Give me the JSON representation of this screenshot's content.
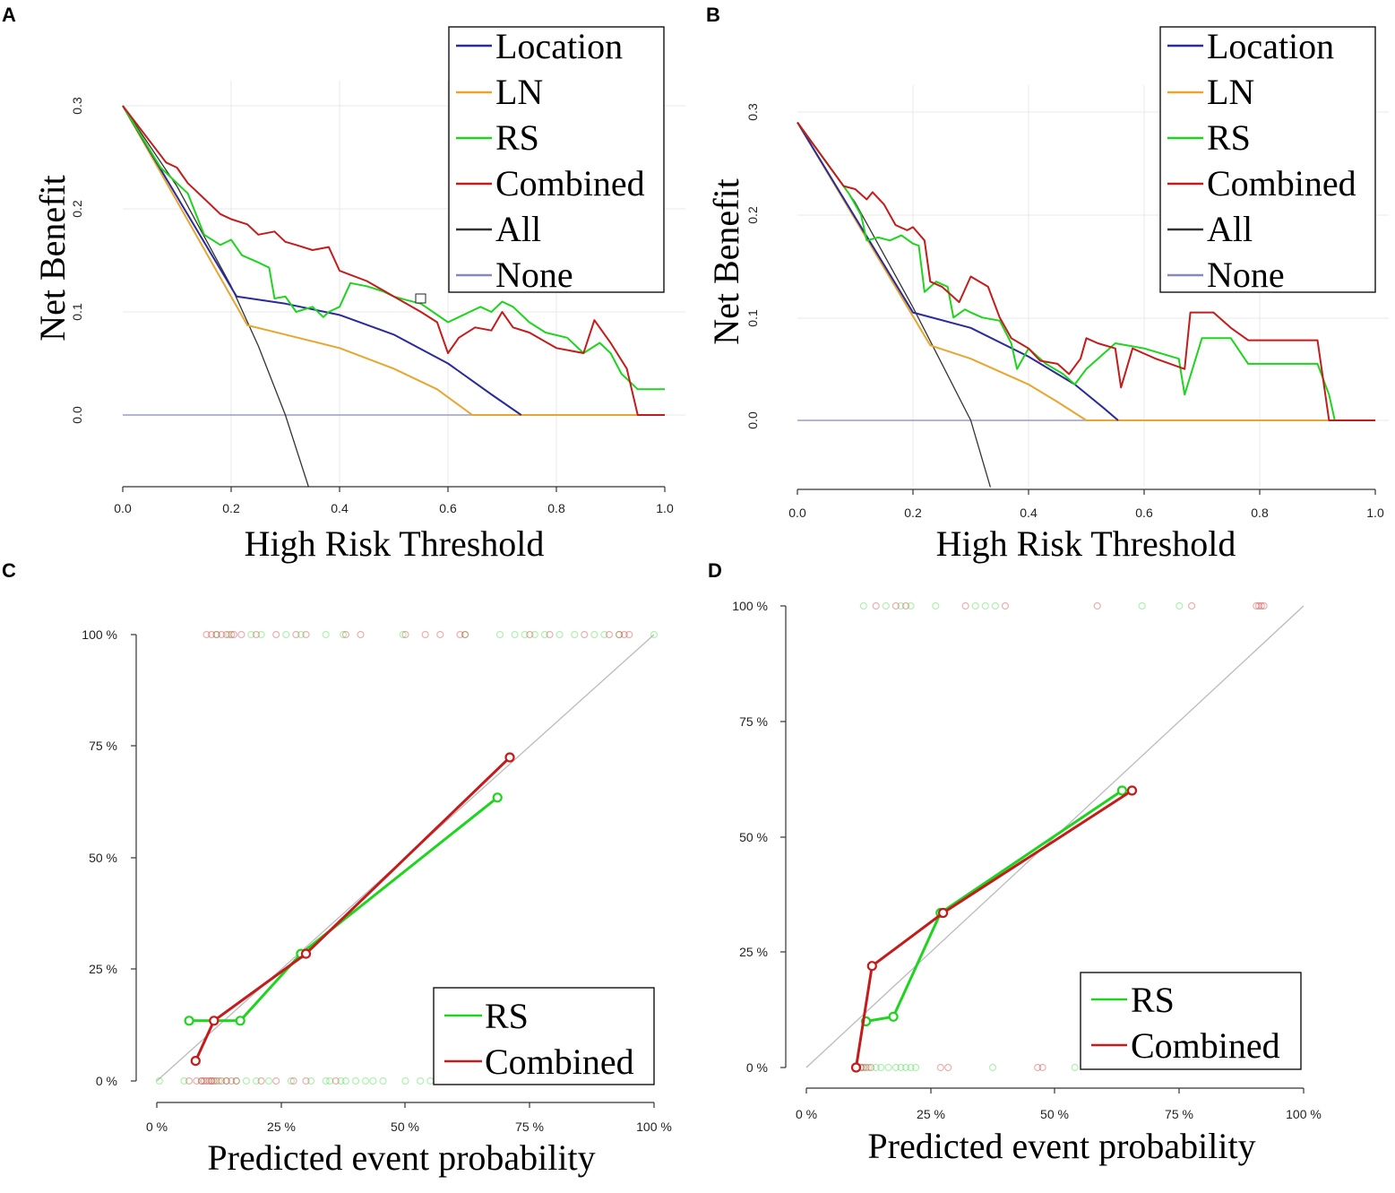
{
  "colors": {
    "Location": "#2a2a9c",
    "LN": "#e8a630",
    "RS": "#1fd41f",
    "Combined": "#c41c1c",
    "All": "#333333",
    "None": "#8888bb",
    "diagonal": "#bbbbbb"
  },
  "chart_data": [
    {
      "panel": "A",
      "type": "line",
      "title": "",
      "xlabel": "High Risk Threshold",
      "ylabel": "Net Benefit",
      "xlim": [
        0.0,
        1.0
      ],
      "ylim": [
        -0.07,
        0.3
      ],
      "x_ticks": [
        "0.0",
        "0.2",
        "0.4",
        "0.6",
        "0.8",
        "1.0"
      ],
      "y_ticks": [
        "0.0",
        "0.1",
        "0.2",
        "0.3"
      ],
      "legend": [
        "Location",
        "LN",
        "RS",
        "Combined",
        "All",
        "None"
      ],
      "series": [
        {
          "name": "Location",
          "x": [
            0,
            0.21,
            0.3,
            0.4,
            0.5,
            0.6,
            0.68,
            0.735
          ],
          "y": [
            0.3,
            0.115,
            0.108,
            0.097,
            0.078,
            0.05,
            0.02,
            0.0
          ]
        },
        {
          "name": "LN",
          "x": [
            0,
            0.23,
            0.3,
            0.4,
            0.5,
            0.58,
            0.645,
            0.75,
            1.0
          ],
          "y": [
            0.3,
            0.087,
            0.078,
            0.065,
            0.045,
            0.025,
            0.0,
            0.0,
            0.0
          ]
        },
        {
          "name": "RS",
          "x": [
            0,
            0.07,
            0.12,
            0.15,
            0.18,
            0.2,
            0.22,
            0.25,
            0.27,
            0.28,
            0.3,
            0.32,
            0.35,
            0.37,
            0.38,
            0.4,
            0.42,
            0.45,
            0.48,
            0.5,
            0.52,
            0.55,
            0.6,
            0.62,
            0.64,
            0.66,
            0.68,
            0.7,
            0.72,
            0.75,
            0.78,
            0.82,
            0.85,
            0.88,
            0.9,
            0.92,
            0.95,
            1.0
          ],
          "y": [
            0.3,
            0.24,
            0.215,
            0.175,
            0.165,
            0.17,
            0.155,
            0.148,
            0.143,
            0.113,
            0.115,
            0.1,
            0.105,
            0.095,
            0.1,
            0.105,
            0.128,
            0.125,
            0.12,
            0.115,
            0.112,
            0.108,
            0.09,
            0.095,
            0.1,
            0.105,
            0.1,
            0.11,
            0.105,
            0.09,
            0.08,
            0.075,
            0.06,
            0.07,
            0.06,
            0.04,
            0.025,
            0.025
          ]
        },
        {
          "name": "Combined",
          "x": [
            0,
            0.08,
            0.1,
            0.12,
            0.15,
            0.18,
            0.2,
            0.23,
            0.25,
            0.28,
            0.3,
            0.32,
            0.35,
            0.38,
            0.4,
            0.45,
            0.5,
            0.55,
            0.58,
            0.6,
            0.62,
            0.65,
            0.68,
            0.7,
            0.72,
            0.75,
            0.8,
            0.85,
            0.87,
            0.9,
            0.93,
            0.95,
            1.0
          ],
          "y": [
            0.3,
            0.245,
            0.24,
            0.225,
            0.21,
            0.195,
            0.19,
            0.185,
            0.175,
            0.178,
            0.168,
            0.165,
            0.16,
            0.163,
            0.14,
            0.13,
            0.115,
            0.1,
            0.09,
            0.06,
            0.075,
            0.085,
            0.082,
            0.1,
            0.085,
            0.08,
            0.065,
            0.06,
            0.092,
            0.07,
            0.045,
            0.0,
            0.0
          ]
        },
        {
          "name": "All",
          "x": [
            0,
            0.1,
            0.2,
            0.25,
            0.3,
            0.343
          ],
          "y": [
            0.3,
            0.222,
            0.125,
            0.067,
            0.0,
            -0.07
          ]
        },
        {
          "name": "None",
          "x": [
            0,
            1
          ],
          "y": [
            0,
            0
          ]
        }
      ]
    },
    {
      "panel": "B",
      "type": "line",
      "title": "",
      "xlabel": "High Risk Threshold",
      "ylabel": "Net Benefit",
      "xlim": [
        0.0,
        1.0
      ],
      "ylim": [
        -0.065,
        0.3
      ],
      "x_ticks": [
        "0.0",
        "0.2",
        "0.4",
        "0.6",
        "0.8",
        "1.0"
      ],
      "y_ticks": [
        "0.0",
        "0.1",
        "0.2",
        "0.3"
      ],
      "legend": [
        "Location",
        "LN",
        "RS",
        "Combined",
        "All",
        "None"
      ],
      "series": [
        {
          "name": "Location",
          "x": [
            0,
            0.2,
            0.3,
            0.4,
            0.48,
            0.53,
            0.555
          ],
          "y": [
            0.29,
            0.105,
            0.09,
            0.062,
            0.035,
            0.012,
            0.0
          ]
        },
        {
          "name": "LN",
          "x": [
            0,
            0.23,
            0.3,
            0.4,
            0.45,
            0.5,
            1.0
          ],
          "y": [
            0.29,
            0.073,
            0.06,
            0.035,
            0.018,
            0.0,
            0.0
          ]
        },
        {
          "name": "RS",
          "x": [
            0,
            0.09,
            0.11,
            0.12,
            0.14,
            0.16,
            0.18,
            0.2,
            0.21,
            0.22,
            0.24,
            0.26,
            0.27,
            0.29,
            0.3,
            0.32,
            0.35,
            0.37,
            0.38,
            0.4,
            0.43,
            0.46,
            0.48,
            0.5,
            0.55,
            0.6,
            0.66,
            0.67,
            0.7,
            0.75,
            0.78,
            0.9,
            0.92,
            0.93
          ],
          "y": [
            0.29,
            0.22,
            0.2,
            0.175,
            0.178,
            0.175,
            0.18,
            0.172,
            0.17,
            0.125,
            0.135,
            0.13,
            0.1,
            0.108,
            0.105,
            0.1,
            0.097,
            0.075,
            0.05,
            0.07,
            0.055,
            0.045,
            0.035,
            0.05,
            0.075,
            0.07,
            0.06,
            0.025,
            0.08,
            0.08,
            0.055,
            0.055,
            0.025,
            0.0
          ]
        },
        {
          "name": "Combined",
          "x": [
            0,
            0.08,
            0.1,
            0.12,
            0.13,
            0.15,
            0.17,
            0.19,
            0.2,
            0.22,
            0.23,
            0.25,
            0.28,
            0.3,
            0.33,
            0.35,
            0.37,
            0.4,
            0.42,
            0.45,
            0.47,
            0.49,
            0.5,
            0.52,
            0.55,
            0.56,
            0.58,
            0.6,
            0.62,
            0.67,
            0.68,
            0.72,
            0.75,
            0.78,
            0.85,
            0.9,
            0.92,
            1.0
          ],
          "y": [
            0.29,
            0.228,
            0.225,
            0.215,
            0.222,
            0.21,
            0.19,
            0.185,
            0.188,
            0.175,
            0.135,
            0.13,
            0.115,
            0.14,
            0.13,
            0.1,
            0.08,
            0.07,
            0.058,
            0.055,
            0.045,
            0.06,
            0.08,
            0.075,
            0.07,
            0.032,
            0.07,
            0.065,
            0.06,
            0.05,
            0.105,
            0.105,
            0.09,
            0.078,
            0.078,
            0.078,
            0.0,
            0.0
          ]
        },
        {
          "name": "All",
          "x": [
            0,
            0.1,
            0.2,
            0.25,
            0.3,
            0.334
          ],
          "y": [
            0.29,
            0.212,
            0.11,
            0.055,
            0.0,
            -0.065
          ]
        },
        {
          "name": "None",
          "x": [
            0,
            1
          ],
          "y": [
            0,
            0
          ]
        }
      ]
    },
    {
      "panel": "C",
      "type": "scatter",
      "title": "",
      "xlabel": "Predicted event probability",
      "ylabel": "",
      "xlim": [
        0,
        100
      ],
      "ylim": [
        0,
        100
      ],
      "x_ticks": [
        "0 %",
        "25 %",
        "50 %",
        "75 %",
        "100 %"
      ],
      "y_ticks": [
        "0 %",
        "25 %",
        "50 %",
        "75 %",
        "100 %"
      ],
      "legend": [
        "RS",
        "Combined"
      ],
      "series": [
        {
          "name": "RS",
          "x": [
            6.5,
            16.8,
            29,
            68.5
          ],
          "y": [
            13.5,
            13.5,
            28.5,
            63.5
          ]
        },
        {
          "name": "Combined",
          "x": [
            7.8,
            11.5,
            30,
            71
          ],
          "y": [
            4.5,
            13.5,
            28.5,
            72.5
          ]
        }
      ],
      "rug": {
        "RS": {
          "x_bottom": [
            0.5,
            5.5,
            9,
            11,
            12.5,
            14,
            16,
            18,
            20,
            22.5,
            27,
            31,
            34,
            34.8,
            37,
            38,
            40,
            42,
            43.5,
            45.5,
            50,
            53,
            55
          ],
          "x_top": [
            12,
            14.5,
            19,
            21,
            26,
            29,
            34,
            37.5,
            49.5,
            62,
            69,
            72,
            74,
            76,
            78,
            81,
            84,
            88,
            90,
            93,
            100
          ]
        },
        "Combined": {
          "x_bottom": [
            6.5,
            8,
            9,
            9.5,
            10,
            10.5,
            11,
            11.5,
            12,
            13,
            14,
            15,
            16,
            21,
            24,
            27.5,
            30,
            36,
            57
          ],
          "x_top": [
            10,
            11,
            12,
            13,
            14,
            15,
            15.5,
            17,
            20,
            24,
            28,
            30,
            38,
            41,
            50,
            54,
            57,
            61,
            62,
            75,
            79,
            86,
            91,
            93,
            94,
            95
          ]
        }
      }
    },
    {
      "panel": "D",
      "type": "scatter",
      "title": "",
      "xlabel": "Predicted event probability",
      "ylabel": "",
      "xlim": [
        0,
        100
      ],
      "ylim": [
        0,
        100
      ],
      "x_ticks": [
        "0 %",
        "25 %",
        "50 %",
        "75 %",
        "100 %"
      ],
      "y_ticks": [
        "0 %",
        "25 %",
        "50 %",
        "75 %",
        "100 %"
      ],
      "legend": [
        "RS",
        "Combined"
      ],
      "series": [
        {
          "name": "RS",
          "x": [
            12,
            17.5,
            27,
            63.5
          ],
          "y": [
            10,
            11,
            33.5,
            60
          ]
        },
        {
          "name": "Combined",
          "x": [
            10,
            13.2,
            27.5,
            65.5
          ],
          "y": [
            0,
            22,
            33.5,
            60
          ]
        },
        {
          "name": "diagonal",
          "x": [
            0,
            100
          ],
          "y": [
            0,
            100
          ]
        }
      ],
      "rug": {
        "RS": {
          "x_bottom": [
            11,
            12.5,
            14,
            15,
            16.5,
            18,
            19,
            20,
            21,
            22,
            37.5,
            54
          ],
          "x_top": [
            11.5,
            16,
            19,
            21,
            26,
            34,
            36,
            38,
            67.5,
            75
          ]
        },
        "Combined": {
          "x_bottom": [
            10,
            11,
            11.5,
            12,
            13,
            27,
            28.5,
            46.5,
            47.5
          ],
          "x_top": [
            14,
            18,
            20,
            32,
            40,
            58.5,
            77.5,
            90.5,
            91,
            91.5,
            92
          ]
        }
      }
    }
  ]
}
